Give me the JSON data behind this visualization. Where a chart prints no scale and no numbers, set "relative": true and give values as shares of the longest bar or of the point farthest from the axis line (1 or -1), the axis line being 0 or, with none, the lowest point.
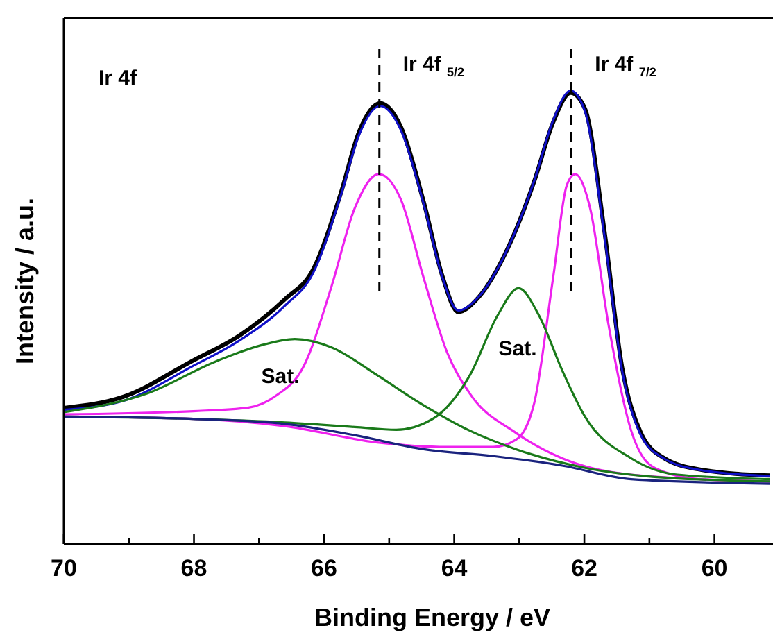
{
  "chart_data": {
    "type": "line",
    "relative": true,
    "xlabel": "Binding Energy / eV",
    "ylabel": "Intensity / a.u.",
    "xlim": [
      70,
      59.1
    ],
    "xticks": [
      70,
      {
        "value": 69,
        "label": null
      },
      68,
      {
        "value": 67,
        "label": null
      },
      66,
      {
        "value": 65,
        "label": null
      },
      64,
      {
        "value": 63,
        "label": null
      },
      62,
      {
        "value": 61,
        "label": null
      },
      60
    ],
    "line_style": "solid",
    "grid": false,
    "series": [
      {
        "color": "#000000",
        "x": [
          70,
          69.08,
          68.01,
          67.3,
          66.6,
          66.17,
          65.74,
          65.46,
          65.14,
          64.82,
          64.47,
          64.18,
          63.94,
          63.62,
          63.19,
          62.77,
          62.48,
          62.21,
          61.99,
          61.7,
          61.42,
          61.13,
          60.78,
          60.21,
          59.15
        ],
        "values": [
          0.3,
          0.325,
          0.405,
          0.46,
          0.54,
          0.605,
          0.775,
          0.91,
          0.972,
          0.92,
          0.755,
          0.59,
          0.512,
          0.545,
          0.648,
          0.8,
          0.93,
          0.995,
          0.96,
          0.7,
          0.39,
          0.245,
          0.19,
          0.164,
          0.151
        ]
      },
      {
        "color": "#1010c8",
        "x": [
          70,
          69.08,
          68.01,
          67.3,
          66.6,
          66.17,
          65.74,
          65.46,
          65.14,
          64.82,
          64.47,
          64.18,
          63.94,
          63.62,
          63.19,
          62.77,
          62.48,
          62.21,
          61.99,
          61.7,
          61.42,
          61.13,
          60.78,
          60.21,
          59.15
        ],
        "values": [
          0.296,
          0.316,
          0.393,
          0.449,
          0.526,
          0.597,
          0.77,
          0.903,
          0.966,
          0.913,
          0.75,
          0.587,
          0.515,
          0.546,
          0.648,
          0.801,
          0.934,
          1,
          0.954,
          0.689,
          0.383,
          0.24,
          0.189,
          0.163,
          0.15
        ]
      },
      {
        "color": "#ee22ee",
        "x": [
          70,
          68.01,
          67.16,
          66.74,
          66.31,
          65.89,
          65.53,
          65.16,
          64.82,
          64.47,
          64.11,
          63.76,
          63.05,
          62.34,
          61.28,
          59.15
        ],
        "values": [
          0.286,
          0.293,
          0.301,
          0.327,
          0.393,
          0.566,
          0.74,
          0.816,
          0.76,
          0.587,
          0.423,
          0.332,
          0.245,
          0.189,
          0.153,
          0.138
        ]
      },
      {
        "color": "#ee22ee",
        "x": [
          70,
          68.01,
          66.6,
          65.18,
          64.11,
          63.4,
          63.05,
          62.77,
          62.48,
          62.27,
          62.14,
          61.91,
          61.63,
          61.28,
          60.92,
          60.21,
          59.15
        ],
        "values": [
          0.281,
          0.276,
          0.26,
          0.224,
          0.214,
          0.214,
          0.23,
          0.311,
          0.587,
          0.791,
          0.816,
          0.74,
          0.485,
          0.25,
          0.168,
          0.143,
          0.138
        ]
      },
      {
        "color": "#1a7a1a",
        "x": [
          70,
          68.72,
          67.66,
          66.95,
          66.45,
          65.89,
          65.18,
          64.47,
          63.76,
          63.05,
          61.99,
          60.92,
          59.15
        ],
        "values": [
          0.291,
          0.332,
          0.403,
          0.439,
          0.452,
          0.434,
          0.372,
          0.306,
          0.25,
          0.209,
          0.168,
          0.148,
          0.138
        ]
      },
      {
        "color": "#1a7a1a",
        "x": [
          70,
          68.01,
          66.6,
          65.53,
          64.89,
          64.33,
          63.76,
          63.33,
          63.01,
          62.7,
          62.34,
          61.99,
          61.28,
          60.57,
          59.15
        ],
        "values": [
          0.281,
          0.276,
          0.268,
          0.258,
          0.252,
          0.276,
          0.372,
          0.505,
          0.564,
          0.505,
          0.383,
          0.281,
          0.189,
          0.153,
          0.143
        ]
      },
      {
        "color": "#1a237e",
        "x": [
          70,
          68.01,
          66.6,
          65.53,
          64.47,
          63.4,
          62.34,
          61.28,
          59.15
        ],
        "values": [
          0.281,
          0.276,
          0.265,
          0.24,
          0.209,
          0.194,
          0.173,
          0.143,
          0.133
        ]
      }
    ],
    "ref_lines": [
      {
        "axis": "x",
        "value": 65.15,
        "label": "Ir 4f $_{5/2}$",
        "color": "#000000",
        "line_style": "dashed"
      },
      {
        "axis": "x",
        "value": 62.2,
        "label": "Ir 4f $_{7/2}$",
        "color": "#000000",
        "line_style": "dashed"
      }
    ],
    "annotations": [
      "Ir 4f",
      "Sat.",
      "Sat."
    ]
  }
}
